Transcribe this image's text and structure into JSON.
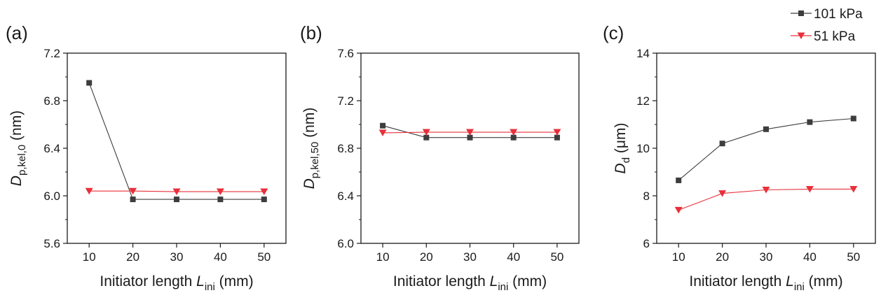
{
  "figure": {
    "legend": [
      {
        "label": "101 kPa",
        "color": "#3d3d3d",
        "marker": "square"
      },
      {
        "label": "51 kPa",
        "color": "#e8303a",
        "marker": "triangle-down"
      }
    ],
    "legend_placement": "top-right"
  },
  "chart_data": [
    {
      "type": "line",
      "panel_label": "(a)",
      "xlabel": {
        "main": "Initiator length ",
        "var": "L",
        "sub": "ini",
        "unit": " (mm)"
      },
      "ylabel": {
        "var": "D",
        "sub": "p,kel,0",
        "unit": " (nm)"
      },
      "x": [
        10,
        20,
        30,
        40,
        50
      ],
      "xlim": [
        5,
        55
      ],
      "ylim": [
        5.6,
        7.2
      ],
      "xticks": [
        "10",
        "20",
        "30",
        "40",
        "50"
      ],
      "yticks": [
        "5.6",
        "6.0",
        "6.4",
        "6.8",
        "7.2"
      ],
      "grid": false,
      "series": [
        {
          "name": "101 kPa",
          "values": [
            6.95,
            5.97,
            5.97,
            5.97,
            5.97
          ]
        },
        {
          "name": "51 kPa",
          "values": [
            6.04,
            6.04,
            6.035,
            6.035,
            6.035
          ]
        }
      ]
    },
    {
      "type": "line",
      "panel_label": "(b)",
      "xlabel": {
        "main": "Initiator length ",
        "var": "L",
        "sub": "ini",
        "unit": " (mm)"
      },
      "ylabel": {
        "var": "D",
        "sub": "p,kel,50",
        "unit": " (nm)"
      },
      "x": [
        10,
        20,
        30,
        40,
        50
      ],
      "xlim": [
        5,
        55
      ],
      "ylim": [
        6.0,
        7.6
      ],
      "xticks": [
        "10",
        "20",
        "30",
        "40",
        "50"
      ],
      "yticks": [
        "6.0",
        "6.4",
        "6.8",
        "7.2",
        "7.6"
      ],
      "grid": false,
      "series": [
        {
          "name": "101 kPa",
          "values": [
            6.99,
            6.89,
            6.89,
            6.89,
            6.89
          ]
        },
        {
          "name": "51 kPa",
          "values": [
            6.93,
            6.935,
            6.935,
            6.935,
            6.935
          ]
        }
      ]
    },
    {
      "type": "line",
      "panel_label": "(c)",
      "xlabel": {
        "main": "Initiator length ",
        "var": "L",
        "sub": "ini",
        "unit": " (mm)"
      },
      "ylabel": {
        "var": "D",
        "sub": "d",
        "unit": " (μm)"
      },
      "x": [
        10,
        20,
        30,
        40,
        50
      ],
      "xlim": [
        5,
        55
      ],
      "ylim": [
        6,
        14
      ],
      "xticks": [
        "10",
        "20",
        "30",
        "40",
        "50"
      ],
      "yticks": [
        "6",
        "8",
        "10",
        "12",
        "14"
      ],
      "grid": false,
      "series": [
        {
          "name": "101 kPa",
          "values": [
            8.65,
            10.2,
            10.8,
            11.1,
            11.25
          ]
        },
        {
          "name": "51 kPa",
          "values": [
            7.4,
            8.1,
            8.25,
            8.28,
            8.28
          ]
        }
      ]
    }
  ]
}
